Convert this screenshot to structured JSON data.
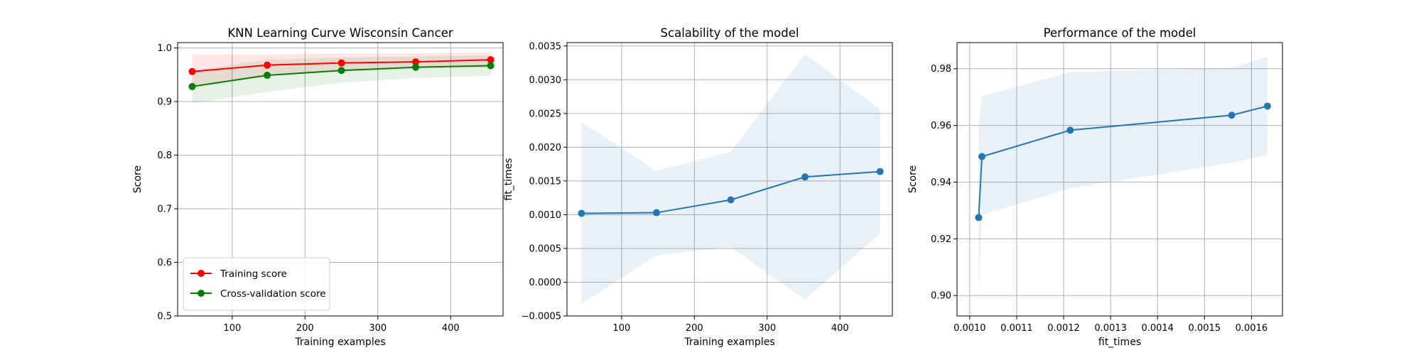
{
  "chart_data": [
    {
      "type": "line",
      "title": "KNN Learning Curve Wisconsin Cancer",
      "xlabel": "Training examples",
      "ylabel": "Score",
      "xlim": [
        25,
        472
      ],
      "ylim": [
        0.5,
        1.01
      ],
      "xticks": [
        100,
        200,
        300,
        400
      ],
      "yticks": [
        0.5,
        0.6,
        0.7,
        0.8,
        0.9,
        1.0
      ],
      "xtick_labels": [
        "100",
        "200",
        "300",
        "400"
      ],
      "ytick_labels": [
        "0.5",
        "0.6",
        "0.7",
        "0.8",
        "0.9",
        "1.0"
      ],
      "grid": true,
      "legend_position": "lower-left",
      "x": [
        45,
        148,
        250,
        352,
        455
      ],
      "series": [
        {
          "name": "Training score",
          "color": "#ff0000",
          "fill_color": "#ff0000",
          "values": [
            0.956,
            0.968,
            0.972,
            0.974,
            0.978
          ],
          "band_low": [
            0.928,
            0.95,
            0.957,
            0.963,
            0.963
          ],
          "band_high": [
            0.988,
            0.988,
            0.99,
            0.99,
            0.992
          ]
        },
        {
          "name": "Cross-validation score",
          "color": "#008000",
          "fill_color": "#008000",
          "values": [
            0.928,
            0.949,
            0.958,
            0.964,
            0.967
          ],
          "band_low": [
            0.897,
            0.918,
            0.935,
            0.944,
            0.948
          ],
          "band_high": [
            0.957,
            0.978,
            0.982,
            0.984,
            0.986
          ]
        }
      ]
    },
    {
      "type": "line",
      "title": "Scalability of the model",
      "xlabel": "Training examples",
      "ylabel": "fit_times",
      "xlim": [
        25,
        472
      ],
      "ylim": [
        -0.0005,
        0.00355
      ],
      "xticks": [
        100,
        200,
        300,
        400
      ],
      "yticks": [
        -0.0005,
        0.0,
        0.0005,
        0.001,
        0.0015,
        0.002,
        0.0025,
        0.003,
        0.0035
      ],
      "xtick_labels": [
        "100",
        "200",
        "300",
        "400"
      ],
      "ytick_labels": [
        "−0.0005",
        "0.0000",
        "0.0005",
        "0.0010",
        "0.0015",
        "0.0020",
        "0.0025",
        "0.0030",
        "0.0035"
      ],
      "grid": true,
      "x": [
        45,
        148,
        250,
        352,
        455
      ],
      "series": [
        {
          "color": "#1f77b4",
          "fill_color": "#1f77b4",
          "values": [
            0.00102,
            0.00103,
            0.00122,
            0.00156,
            0.00164
          ],
          "band_low": [
            -0.00032,
            0.0004,
            0.00052,
            -0.00026,
            0.00072
          ],
          "band_high": [
            0.00237,
            0.00165,
            0.00193,
            0.00338,
            0.00256
          ]
        }
      ]
    },
    {
      "type": "line",
      "title": "Performance of the model",
      "xlabel": "fit_times",
      "ylabel": "Score",
      "xlim": [
        0.000973,
        0.001666
      ],
      "ylim": [
        0.8928,
        0.9892
      ],
      "xticks": [
        0.001,
        0.0011,
        0.0012,
        0.0013,
        0.0014,
        0.0015,
        0.0016
      ],
      "yticks": [
        0.9,
        0.92,
        0.94,
        0.96,
        0.98
      ],
      "xtick_labels": [
        "0.0010",
        "0.0011",
        "0.0012",
        "0.0013",
        "0.0014",
        "0.0015",
        "0.0016"
      ],
      "ytick_labels": [
        "0.90",
        "0.92",
        "0.94",
        "0.96",
        "0.98"
      ],
      "grid": true,
      "x": [
        0.001019,
        0.001026,
        0.001214,
        0.001558,
        0.001634
      ],
      "series": [
        {
          "color": "#1f77b4",
          "fill_color": "#1f77b4",
          "values": [
            0.9275,
            0.949,
            0.9583,
            0.9636,
            0.9668
          ],
          "band_low": [
            0.9005,
            0.9285,
            0.9378,
            0.9468,
            0.9495
          ],
          "band_high": [
            0.9595,
            0.9703,
            0.9788,
            0.9803,
            0.9842
          ]
        }
      ]
    }
  ]
}
